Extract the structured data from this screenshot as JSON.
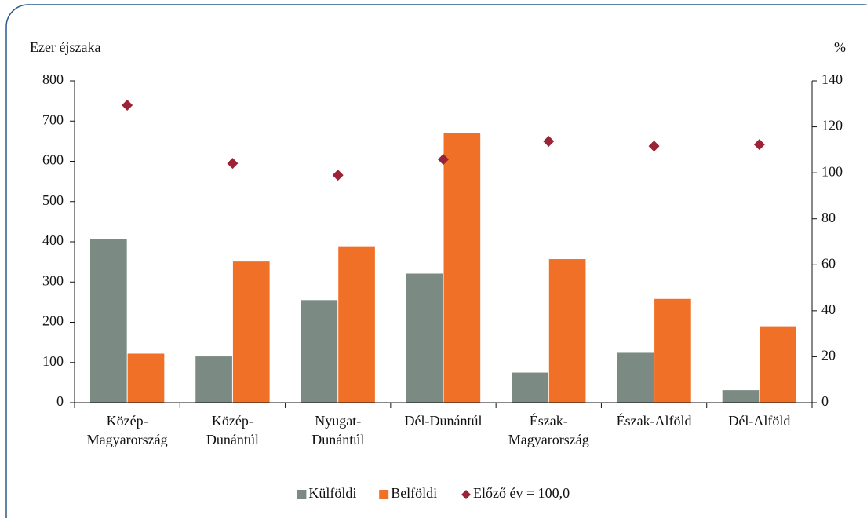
{
  "chart_data": {
    "type": "bar",
    "y_label": "Ezer éjszaka",
    "y2_label": "%",
    "categories": [
      "Közép-\nMagyarország",
      "Közép-\nDunántúl",
      "Nyugat-\nDunántúl",
      "Dél-Dunántúl",
      "Észak-\nMagyarország",
      "Észak-Alföld",
      "Dél-Alföld"
    ],
    "series": [
      {
        "name": "Külföldi",
        "color": "#7b8b83",
        "values": [
          407,
          115,
          255,
          321,
          75,
          124,
          31
        ]
      },
      {
        "name": "Belföldi",
        "color": "#f07028",
        "values": [
          122,
          351,
          387,
          670,
          357,
          258,
          190
        ]
      },
      {
        "name": "Előző év = 100,0",
        "color": "#9b2335",
        "type": "scatter",
        "axis": "y2",
        "values": [
          129.4,
          104.1,
          99,
          105.8,
          113.7,
          111.6,
          112.3
        ]
      }
    ],
    "ylim": [
      0,
      800
    ],
    "yticks": [
      0,
      100,
      200,
      300,
      400,
      500,
      600,
      700,
      800
    ],
    "y2lim": [
      0,
      140
    ],
    "y2ticks": [
      0,
      20,
      40,
      60,
      80,
      100,
      120,
      140
    ],
    "legend": "bottom"
  }
}
